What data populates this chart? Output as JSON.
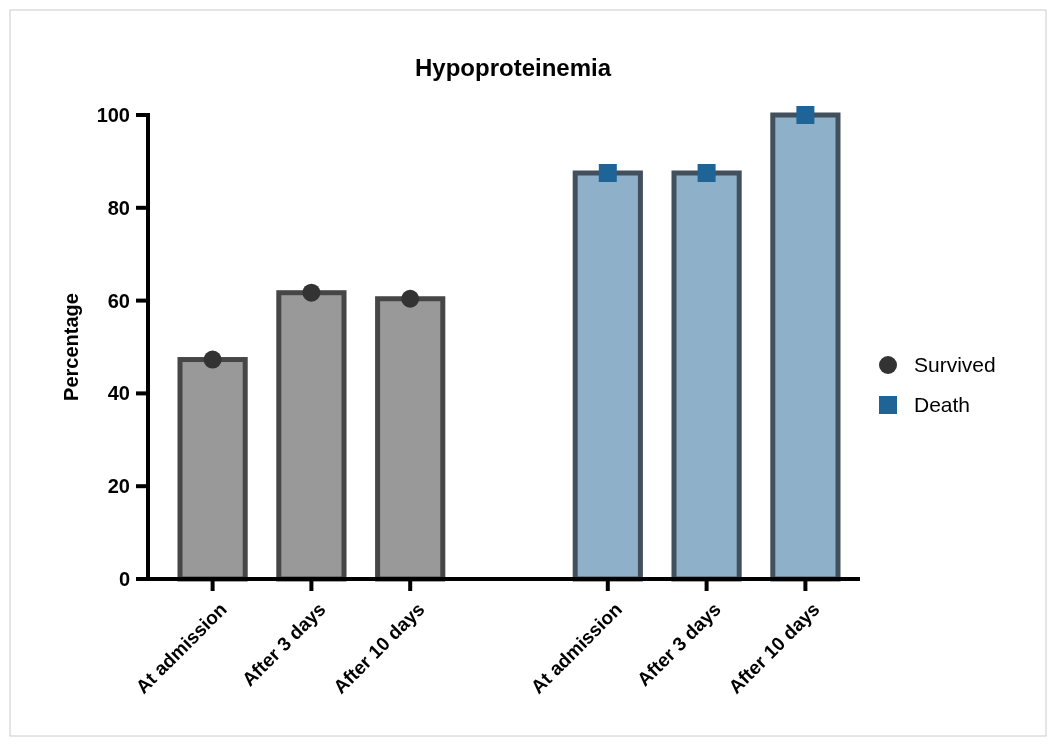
{
  "chart_data": {
    "type": "bar",
    "title": "Hypoproteinemia",
    "ylabel": "Percentage",
    "categories": [
      "At admission",
      "After 3 days",
      "After 10 days",
      null,
      "At admission",
      "After 3 days",
      "After 10 days"
    ],
    "series": [
      {
        "color": "#999999",
        "values": [
          47.3,
          61.7,
          60.4,
          null,
          null,
          null,
          null
        ]
      },
      {
        "color": "#8fb0c9",
        "values": [
          null,
          null,
          null,
          null,
          87.5,
          87.5,
          100
        ]
      },
      {
        "type": "scatter",
        "name": "Survived",
        "color": "#333333",
        "marker": "circle",
        "values": [
          47.3,
          61.7,
          60.4,
          null,
          null,
          null,
          null
        ]
      },
      {
        "type": "scatter",
        "name": "Death",
        "color": "#1f6497",
        "marker": "square",
        "values": [
          null,
          null,
          null,
          null,
          87.5,
          87.5,
          100
        ]
      }
    ],
    "ylim": [
      0,
      100
    ],
    "yticks": [
      0,
      20,
      40,
      60,
      80,
      100
    ],
    "grid": false,
    "legend": "right"
  }
}
